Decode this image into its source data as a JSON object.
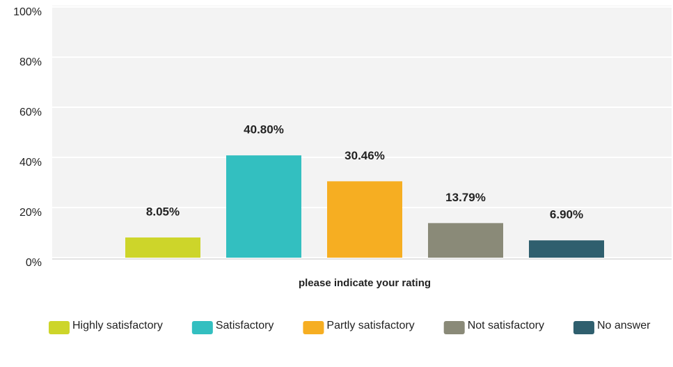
{
  "chart_data": {
    "type": "bar",
    "x_label": "please indicate your rating",
    "categories": [
      null
    ],
    "series": [
      {
        "name": "Highly satisfactory",
        "color": "#cdd52a",
        "values": [
          8.05
        ],
        "value_labels": [
          "8.05%"
        ]
      },
      {
        "name": "Satisfactory",
        "color": "#33bfc0",
        "values": [
          40.8
        ],
        "value_labels": [
          "40.80%"
        ]
      },
      {
        "name": "Partly satisfactory",
        "color": "#f6ae22",
        "values": [
          30.46
        ],
        "value_labels": [
          "30.46%"
        ]
      },
      {
        "name": "Not satisfactory",
        "color": "#8a8a78",
        "values": [
          13.79
        ],
        "value_labels": [
          "13.79%"
        ]
      },
      {
        "name": "No answer",
        "color": "#2f5f6e",
        "values": [
          6.9
        ],
        "value_labels": [
          "6.90%"
        ]
      }
    ],
    "ylim": [
      0,
      100
    ],
    "yticks": [
      {
        "value": 0,
        "label": "0%"
      },
      {
        "value": 20,
        "label": "20%"
      },
      {
        "value": 40,
        "label": "40%"
      },
      {
        "value": 60,
        "label": "60%"
      },
      {
        "value": 80,
        "label": "80%"
      },
      {
        "value": 100,
        "label": "100%"
      }
    ],
    "grid": true,
    "legend": "bottom"
  }
}
